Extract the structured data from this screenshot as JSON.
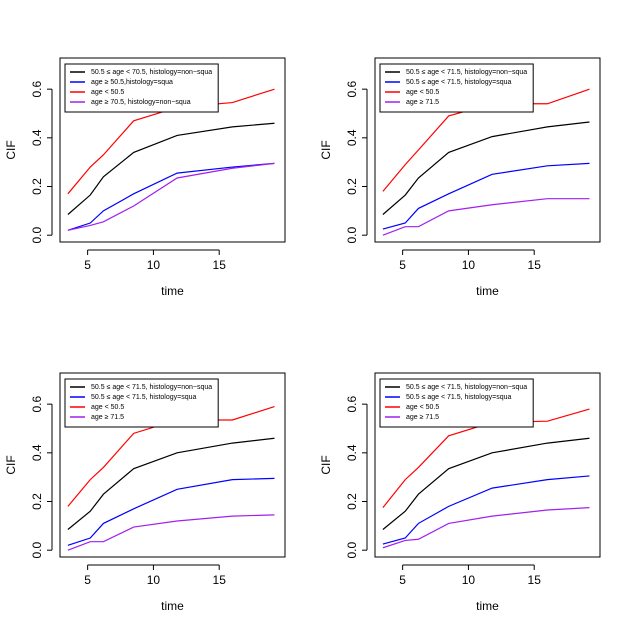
{
  "chart_data": [
    {
      "type": "line",
      "x_label": "time",
      "y_label": "CIF",
      "x": [
        3.5,
        5.2,
        6.2,
        8.5,
        11.8,
        16,
        19.2
      ],
      "xlim": [
        2.9,
        20.0
      ],
      "ylim": [
        -0.028,
        0.728
      ],
      "xticks": [
        5,
        10,
        15
      ],
      "yticks": [
        {
          "value": 0,
          "label": "0.0"
        },
        0.2,
        0.4,
        0.6
      ],
      "legend": "top-left",
      "series": [
        {
          "name": "50.5 ≤ age < 70.5, histology=non−squa",
          "color": "#000000",
          "values": [
            0.085,
            0.165,
            0.24,
            0.34,
            0.41,
            0.445,
            0.46
          ]
        },
        {
          "name": "age ≥ 50.5,histology=squa",
          "color": "#0000ff",
          "values": [
            0.02,
            0.05,
            0.1,
            0.17,
            0.255,
            0.28,
            0.295
          ]
        },
        {
          "name": "age < 50.5",
          "color": "#ff0000",
          "values": [
            0.17,
            0.28,
            0.33,
            0.47,
            0.525,
            0.545,
            0.6
          ]
        },
        {
          "name": "age ≥ 70.5, histology=non−squa",
          "color": "#a020f0",
          "values": [
            0.02,
            0.04,
            0.055,
            0.12,
            0.235,
            0.275,
            0.295
          ]
        }
      ]
    },
    {
      "type": "line",
      "x_label": "time",
      "y_label": "CIF",
      "x": [
        3.5,
        5.2,
        6.2,
        8.5,
        11.8,
        16,
        19.2
      ],
      "xlim": [
        2.9,
        20.0
      ],
      "ylim": [
        -0.028,
        0.728
      ],
      "xticks": [
        5,
        10,
        15
      ],
      "yticks": [
        {
          "value": 0,
          "label": "0.0"
        },
        0.2,
        0.4,
        0.6
      ],
      "legend": "top-left",
      "series": [
        {
          "name": "50.5 ≤ age < 71.5, histology=non−squa",
          "color": "#000000",
          "values": [
            0.085,
            0.165,
            0.235,
            0.34,
            0.405,
            0.445,
            0.465
          ]
        },
        {
          "name": "50.5 ≤ age < 71.5, histology=squa",
          "color": "#0000ff",
          "values": [
            0.025,
            0.05,
            0.11,
            0.17,
            0.25,
            0.285,
            0.295
          ]
        },
        {
          "name": "age < 50.5",
          "color": "#ff0000",
          "values": [
            0.18,
            0.29,
            0.35,
            0.49,
            0.54,
            0.54,
            0.6
          ]
        },
        {
          "name": "age ≥ 71.5",
          "color": "#a020f0",
          "values": [
            0,
            0.035,
            0.035,
            0.1,
            0.125,
            0.15,
            0.15
          ]
        }
      ]
    },
    {
      "type": "line",
      "x_label": "time",
      "y_label": "CIF",
      "x": [
        3.5,
        5.2,
        6.2,
        8.5,
        11.8,
        16,
        19.2
      ],
      "xlim": [
        2.9,
        20.0
      ],
      "ylim": [
        -0.028,
        0.728
      ],
      "xticks": [
        5,
        10,
        15
      ],
      "yticks": [
        {
          "value": 0,
          "label": "0.0"
        },
        0.2,
        0.4,
        0.6
      ],
      "legend": "top-left",
      "series": [
        {
          "name": "50.5 ≤ age < 71.5, histology=non−squa",
          "color": "#000000",
          "values": [
            0.085,
            0.16,
            0.23,
            0.335,
            0.4,
            0.44,
            0.46
          ]
        },
        {
          "name": "50.5 ≤ age < 71.5, histology=squa",
          "color": "#0000ff",
          "values": [
            0.02,
            0.05,
            0.11,
            0.17,
            0.25,
            0.29,
            0.295
          ]
        },
        {
          "name": "age < 50.5",
          "color": "#ff0000",
          "values": [
            0.18,
            0.29,
            0.34,
            0.48,
            0.535,
            0.535,
            0.59
          ]
        },
        {
          "name": "age ≥ 71.5",
          "color": "#a020f0",
          "values": [
            0,
            0.035,
            0.035,
            0.095,
            0.12,
            0.14,
            0.145
          ]
        }
      ]
    },
    {
      "type": "line",
      "x_label": "time",
      "y_label": "CIF",
      "x": [
        3.5,
        5.2,
        6.2,
        8.5,
        11.8,
        16,
        19.2
      ],
      "xlim": [
        2.9,
        20.0
      ],
      "ylim": [
        -0.028,
        0.728
      ],
      "xticks": [
        5,
        10,
        15
      ],
      "yticks": [
        {
          "value": 0,
          "label": "0.0"
        },
        0.2,
        0.4,
        0.6
      ],
      "legend": "top-left",
      "series": [
        {
          "name": "50.5 ≤ age < 71.5, histology=non−squa",
          "color": "#000000",
          "values": [
            0.085,
            0.16,
            0.23,
            0.335,
            0.4,
            0.44,
            0.46
          ]
        },
        {
          "name": "50.5 ≤ age < 71.5, histology=squa",
          "color": "#0000ff",
          "values": [
            0.025,
            0.05,
            0.11,
            0.18,
            0.255,
            0.29,
            0.305
          ]
        },
        {
          "name": "age < 50.5",
          "color": "#ff0000",
          "values": [
            0.175,
            0.29,
            0.34,
            0.47,
            0.525,
            0.53,
            0.58
          ]
        },
        {
          "name": "age ≥ 71.5",
          "color": "#a020f0",
          "values": [
            0.01,
            0.04,
            0.045,
            0.11,
            0.14,
            0.165,
            0.175
          ]
        }
      ]
    }
  ]
}
